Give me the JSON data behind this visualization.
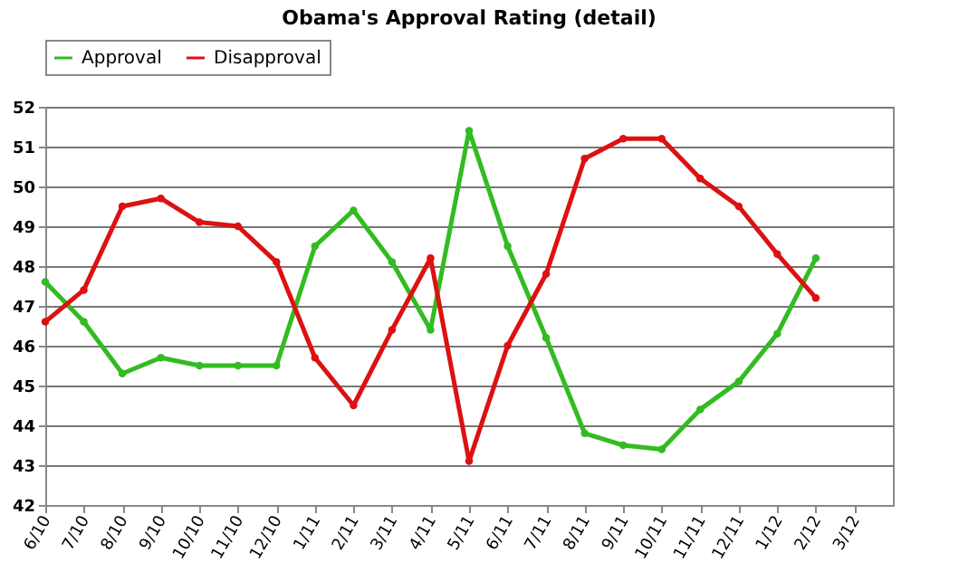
{
  "chart_data": {
    "type": "line",
    "title": "Obama's Approval Rating (detail)",
    "categories": [
      "6/10",
      "7/10",
      "8/10",
      "9/10",
      "10/10",
      "11/10",
      "12/10",
      "1/11",
      "2/11",
      "3/11",
      "4/11",
      "5/11",
      "6/11",
      "7/11",
      "8/11",
      "9/11",
      "10/11",
      "11/11",
      "12/11",
      "1/12",
      "2/12",
      "3/12"
    ],
    "series": [
      {
        "name": "Approval",
        "color": "#33bb22",
        "values": [
          47.6,
          46.6,
          45.3,
          45.7,
          45.5,
          45.5,
          45.5,
          48.5,
          49.4,
          48.1,
          46.4,
          51.4,
          48.5,
          46.2,
          43.8,
          43.5,
          43.4,
          44.4,
          45.1,
          46.3,
          48.2,
          null
        ]
      },
      {
        "name": "Disapproval",
        "color": "#dd1111",
        "values": [
          46.6,
          47.4,
          49.5,
          49.7,
          49.1,
          49.0,
          48.1,
          45.7,
          44.5,
          46.4,
          48.2,
          43.1,
          46.0,
          47.8,
          50.7,
          51.2,
          51.2,
          50.2,
          49.5,
          48.3,
          47.2,
          null
        ]
      }
    ],
    "ylim": [
      42,
      52
    ],
    "yticks": [
      42,
      43,
      44,
      45,
      46,
      47,
      48,
      49,
      50,
      51,
      52
    ],
    "grid": "y",
    "legend": "top",
    "marker": "circle",
    "line_style": "solid"
  }
}
